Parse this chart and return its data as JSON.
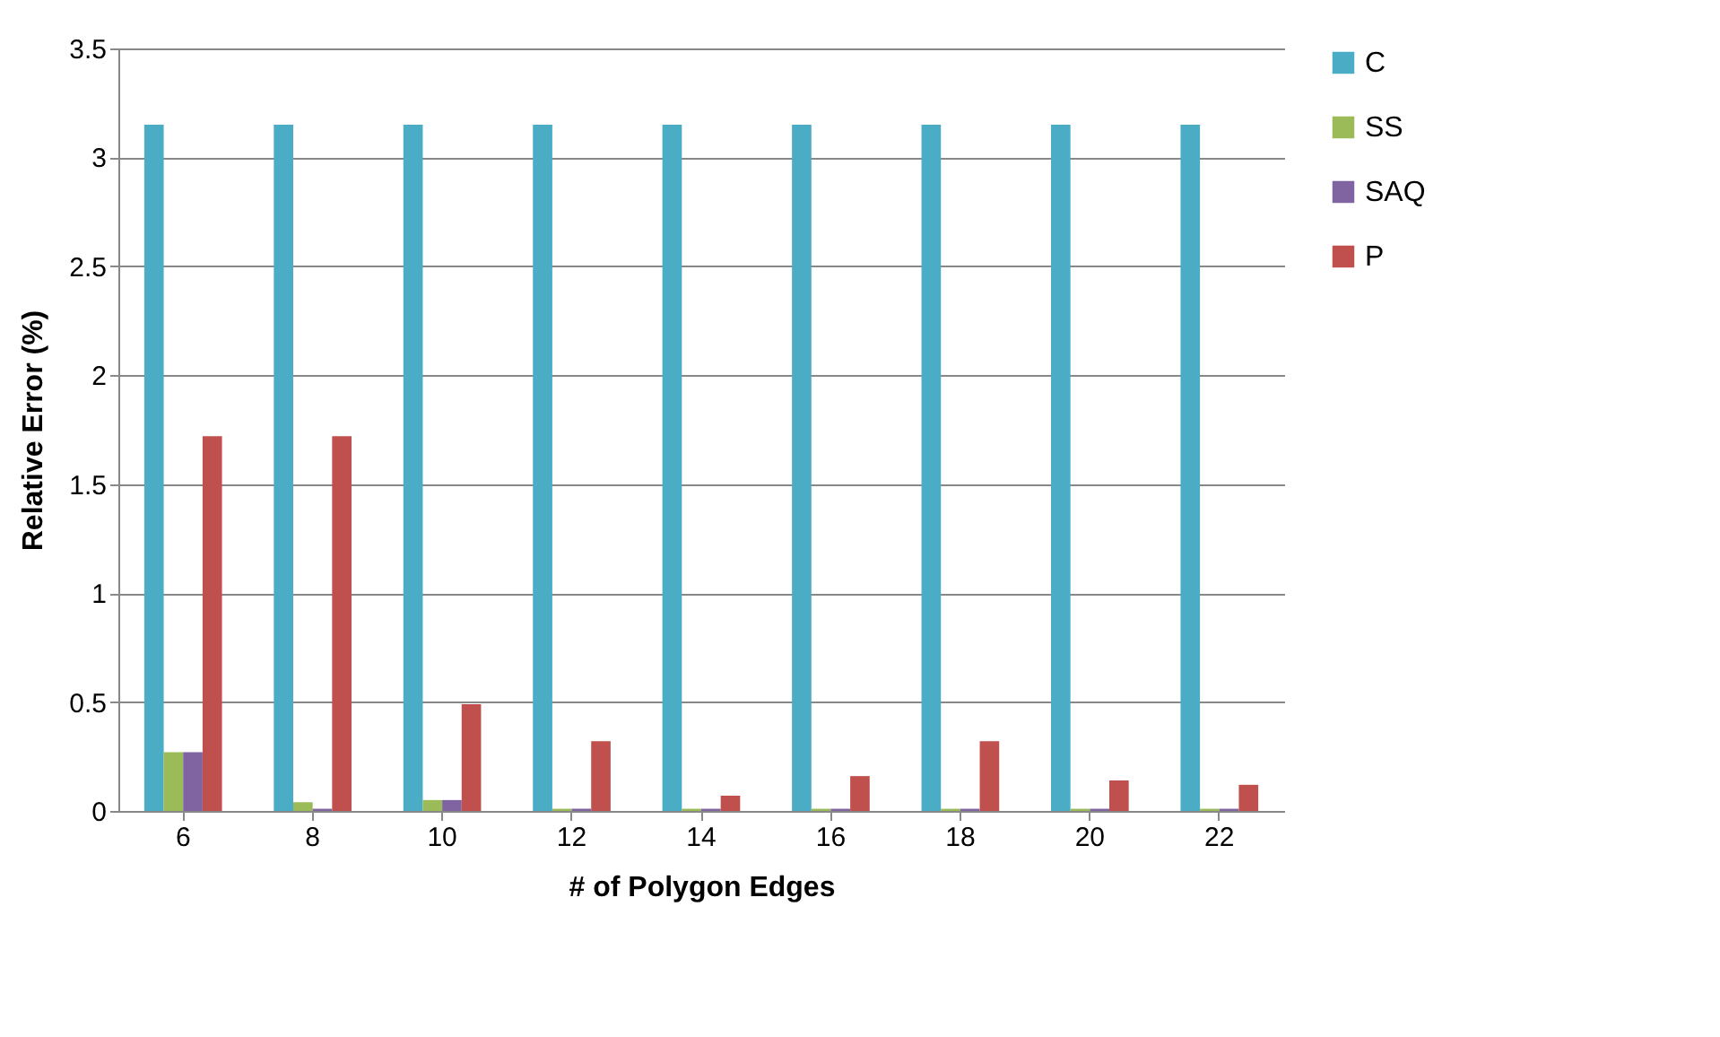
{
  "chart_data": {
    "type": "bar",
    "xlabel": "# of Polygon Edges",
    "ylabel": "Relative Error (%)",
    "categories": [
      "6",
      "8",
      "10",
      "12",
      "14",
      "16",
      "18",
      "20",
      "22"
    ],
    "series": [
      {
        "name": "C",
        "color": "#4bacc6",
        "values": [
          3.15,
          3.15,
          3.15,
          3.15,
          3.15,
          3.15,
          3.15,
          3.15,
          3.15
        ]
      },
      {
        "name": "SS",
        "color": "#9bbb59",
        "values": [
          0.27,
          0.04,
          0.05,
          0.01,
          0.01,
          0.01,
          0.01,
          0.01,
          0.01
        ]
      },
      {
        "name": "SAQ",
        "color": "#8064a2",
        "values": [
          0.27,
          0.01,
          0.05,
          0.01,
          0.01,
          0.01,
          0.01,
          0.01,
          0.01
        ]
      },
      {
        "name": "P",
        "color": "#c0504d",
        "values": [
          1.72,
          1.72,
          0.49,
          0.32,
          0.07,
          0.16,
          0.32,
          0.14,
          0.12
        ]
      }
    ],
    "ylim": [
      0,
      3.5
    ],
    "yticks": [
      0,
      0.5,
      1,
      1.5,
      2,
      2.5,
      3,
      3.5
    ],
    "grid": "y",
    "legend": "right"
  }
}
